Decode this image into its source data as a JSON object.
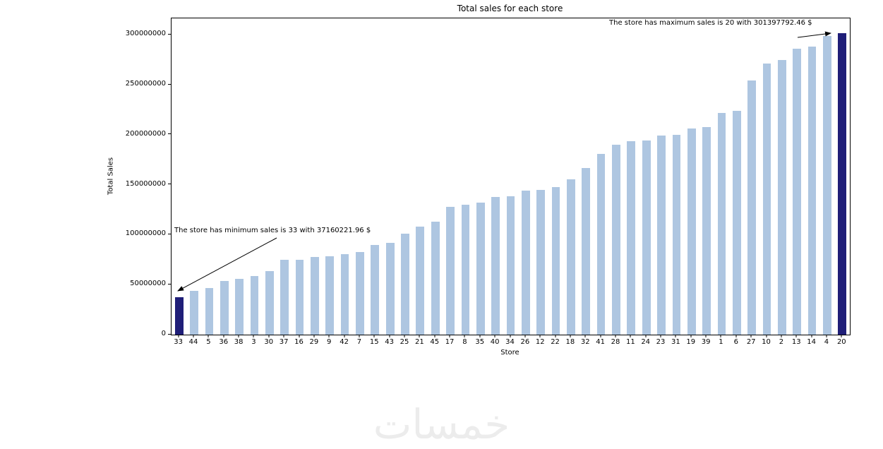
{
  "chart_data": {
    "type": "bar",
    "title": "Total sales for each store",
    "xlabel": "Store",
    "ylabel": "Total Sales",
    "categories": [
      "33",
      "44",
      "5",
      "36",
      "38",
      "3",
      "30",
      "37",
      "16",
      "29",
      "9",
      "42",
      "7",
      "15",
      "43",
      "25",
      "21",
      "45",
      "17",
      "8",
      "35",
      "40",
      "34",
      "26",
      "12",
      "22",
      "18",
      "32",
      "41",
      "28",
      "11",
      "24",
      "23",
      "31",
      "19",
      "39",
      "1",
      "6",
      "27",
      "10",
      "2",
      "13",
      "14",
      "4",
      "20"
    ],
    "values": [
      37160221.96,
      44000000,
      46500000,
      54000000,
      56000000,
      58500000,
      63500000,
      75000000,
      75000000,
      77500000,
      78500000,
      80500000,
      82500000,
      90000000,
      92000000,
      101000000,
      108000000,
      113000000,
      128000000,
      130000000,
      132000000,
      137500000,
      138500000,
      144000000,
      145000000,
      147500000,
      155500000,
      166500000,
      181000000,
      190000000,
      193500000,
      194500000,
      199000000,
      200000000,
      206500000,
      208000000,
      222000000,
      224000000,
      254000000,
      271000000,
      275000000,
      286000000,
      288500000,
      299000000,
      301397792.46
    ],
    "ylim": [
      0,
      316467682
    ],
    "yticks": [
      0,
      50000000,
      100000000,
      150000000,
      200000000,
      250000000,
      300000000
    ],
    "grid": false,
    "legend": "none",
    "bar_color": "#aec6e1",
    "highlight_color": "#1f1e78",
    "highlighted_categories": [
      "33",
      "20"
    ],
    "annotations": [
      {
        "text": "The store has minimum sales is 33 with 37160221.96 $",
        "store": "33",
        "value": 37160221.96
      },
      {
        "text": "The store has maximum sales is 20 with 301397792.46 $",
        "store": "20",
        "value": 301397792.46
      }
    ]
  },
  "watermark": {
    "text": "خمسات"
  }
}
